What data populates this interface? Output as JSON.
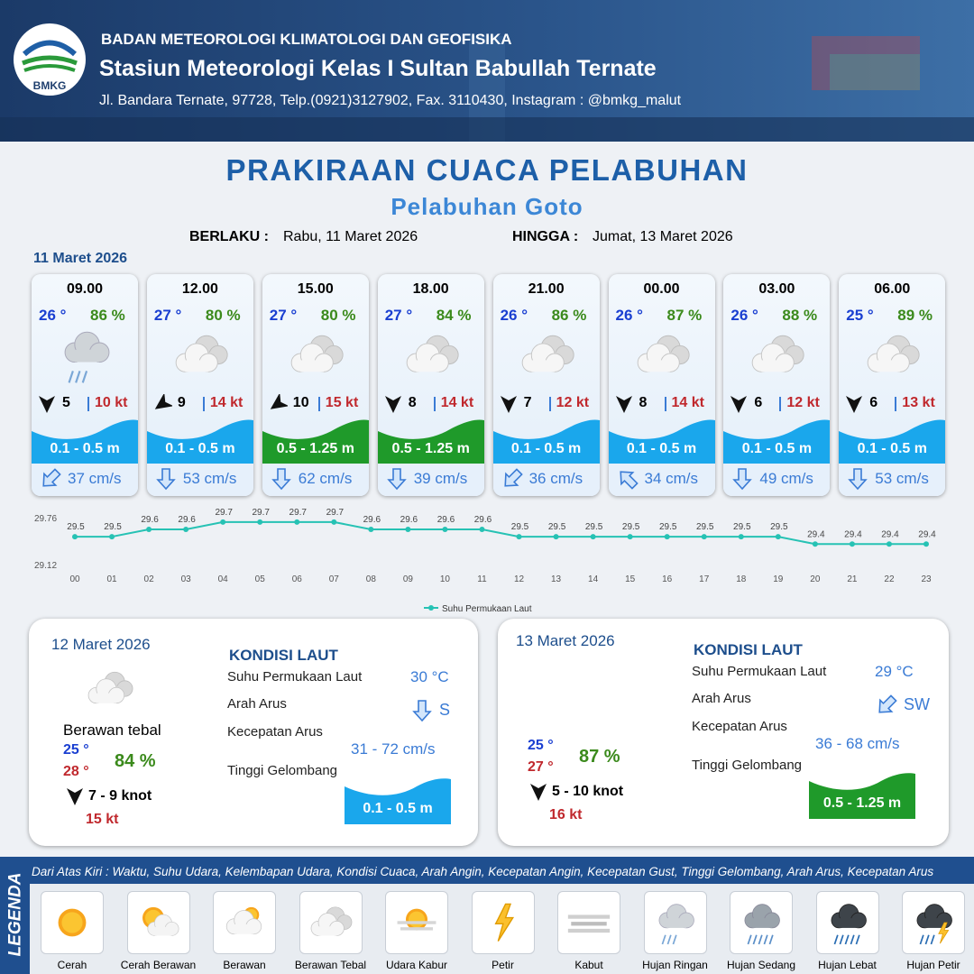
{
  "header": {
    "logo_text": "BMKG",
    "org": "BADAN METEOROLOGI KLIMATOLOGI DAN GEOFISIKA",
    "station": "Stasiun Meteorologi Kelas I Sultan Babullah Ternate",
    "address": "Jl. Bandara Ternate, 97728, Telp.(0921)3127902, Fax. 3110430, Instagram : @bmkg_malut"
  },
  "title": "PRAKIRAAN CUACA PELABUHAN",
  "subtitle": "Pelabuhan Goto",
  "validity": {
    "from_label": "BERLAKU :",
    "from": "Rabu, 11 Maret 2026",
    "to_label": "HINGGA :",
    "to": "Jumat, 13 Maret 2026"
  },
  "day1": {
    "date": "11 Maret 2026",
    "slots": [
      {
        "time": "09.00",
        "temp": "26 °",
        "humidity": "86 %",
        "wind": 5,
        "gust": "10 kt",
        "wave": "0.1 - 0.5 m",
        "wave_color": "#1aa7ec",
        "current": "37 cm/s"
      },
      {
        "time": "12.00",
        "temp": "27 °",
        "humidity": "80 %",
        "wind": 9,
        "gust": "14 kt",
        "wave": "0.1 - 0.5 m",
        "wave_color": "#1aa7ec",
        "current": "53 cm/s"
      },
      {
        "time": "15.00",
        "temp": "27 °",
        "humidity": "80 %",
        "wind": 10,
        "gust": "15 kt",
        "wave": "0.5 - 1.25 m",
        "wave_color": "#1f9a2a",
        "current": "62 cm/s"
      },
      {
        "time": "18.00",
        "temp": "27 °",
        "humidity": "84 %",
        "wind": 8,
        "gust": "14 kt",
        "wave": "0.5 - 1.25 m",
        "wave_color": "#1f9a2a",
        "current": "39 cm/s"
      },
      {
        "time": "21.00",
        "temp": "26 °",
        "humidity": "86 %",
        "wind": 7,
        "gust": "12 kt",
        "wave": "0.1 - 0.5 m",
        "wave_color": "#1aa7ec",
        "current": "36 cm/s"
      },
      {
        "time": "00.00",
        "temp": "26 °",
        "humidity": "87 %",
        "wind": 8,
        "gust": "14 kt",
        "wave": "0.1 - 0.5 m",
        "wave_color": "#1aa7ec",
        "current": "34 cm/s"
      },
      {
        "time": "03.00",
        "temp": "26 °",
        "humidity": "88 %",
        "wind": 6,
        "gust": "12 kt",
        "wave": "0.1 - 0.5 m",
        "wave_color": "#1aa7ec",
        "current": "49 cm/s"
      },
      {
        "time": "06.00",
        "temp": "25 °",
        "humidity": "89 %",
        "wind": 6,
        "gust": "13 kt",
        "wave": "0.1 - 0.5 m",
        "wave_color": "#1aa7ec",
        "current": "53 cm/s"
      }
    ]
  },
  "chart_data": {
    "type": "line",
    "categories": [
      "00",
      "01",
      "02",
      "03",
      "04",
      "05",
      "06",
      "07",
      "08",
      "09",
      "10",
      "11",
      "12",
      "13",
      "14",
      "15",
      "16",
      "17",
      "18",
      "19",
      "20",
      "21",
      "22",
      "23"
    ],
    "series": [
      {
        "name": "Suhu Permukaan Laut",
        "color": "#26c2b4",
        "values": [
          29.5,
          29.5,
          29.6,
          29.6,
          29.7,
          29.7,
          29.7,
          29.7,
          29.6,
          29.6,
          29.6,
          29.6,
          29.5,
          29.5,
          29.5,
          29.5,
          29.5,
          29.5,
          29.5,
          29.5,
          29.4,
          29.4,
          29.4,
          29.4
        ]
      }
    ],
    "ylim": [
      29.12,
      29.76
    ],
    "yticks": [
      29.12,
      29.76
    ],
    "grid": false,
    "legend": "bottom"
  },
  "day2": {
    "date": "12 Maret 2026",
    "condition": "Berawan tebal",
    "temp_min": "25 °",
    "temp_max": "28 °",
    "humidity": "84 %",
    "wind": "7  - 9 knot",
    "gust": "15 kt",
    "sea": {
      "title": "KONDISI LAUT",
      "sst_label": "Suhu Permukaan Laut",
      "sst": "30 °C",
      "dir_label": "Arah Arus",
      "dir": "S",
      "speed_label": "Kecepatan Arus",
      "speed": "31  - 72 cm/s",
      "wave_label": "Tinggi Gelombang",
      "wave": "0.1 - 0.5 m",
      "wave_color": "#1aa7ec"
    }
  },
  "day3": {
    "date": "13 Maret 2026",
    "temp_min": "25 °",
    "temp_max": "27 °",
    "humidity": "87 %",
    "wind": "5  - 10 knot",
    "gust": "16 kt",
    "sea": {
      "title": "KONDISI LAUT",
      "sst_label": "Suhu Permukaan Laut",
      "sst": "29 °C",
      "dir_label": "Arah Arus",
      "dir": "SW",
      "speed_label": "Kecepatan Arus",
      "speed": "36  - 68 cm/s",
      "wave_label": "Tinggi Gelombang",
      "wave": "0.5 - 1.25 m",
      "wave_color": "#1f9a2a"
    }
  },
  "legend": {
    "title": "LEGENDA",
    "description": "Dari Atas Kiri : Waktu, Suhu Udara, Kelembapan Udara, Kondisi Cuaca, Arah Angin, Kecepatan Angin, Kecepatan Gust, Tinggi Gelombang, Arah Arus, Kecepatan Arus",
    "items": [
      "Cerah",
      "Cerah Berawan",
      "Berawan",
      "Berawan Tebal",
      "Udara Kabur",
      "Petir",
      "Kabut",
      "Hujan Ringan",
      "Hujan Sedang",
      "Hujan Lebat",
      "Hujan Petir"
    ]
  }
}
